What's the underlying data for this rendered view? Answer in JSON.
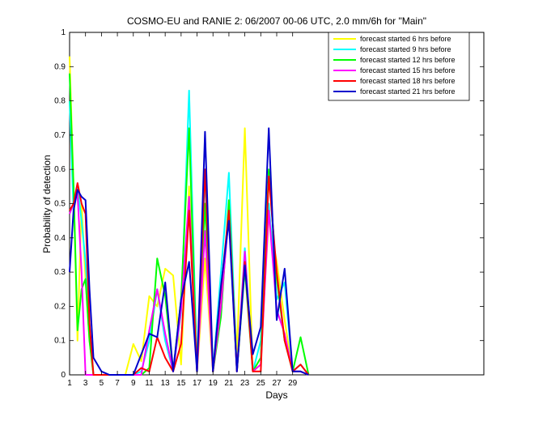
{
  "chart_data": {
    "type": "line",
    "title": "COSMO-EU and RANIE 2: 06/2007 00-06 UTC, 2.0 mm/6h for \"Main\"",
    "xlabel": "Days",
    "ylabel": "Probability of detection",
    "xlim": [
      1,
      53
    ],
    "ylim": [
      0,
      1
    ],
    "xticks": [
      1,
      3,
      5,
      7,
      9,
      11,
      13,
      15,
      17,
      19,
      21,
      23,
      25,
      27,
      29
    ],
    "yticks": [
      0,
      0.1,
      0.2,
      0.3,
      0.4,
      0.5,
      0.6,
      0.7,
      0.8,
      0.9,
      1
    ],
    "ytick_labels": [
      "0",
      "0.1",
      "0.2",
      "0.3",
      "0.4",
      "0.5",
      "0.6",
      "0.7",
      "0.8",
      "0.9",
      "1"
    ],
    "legend_position": "top-right",
    "x": [
      1,
      1.5,
      2,
      2.5,
      3,
      3.5,
      4,
      5,
      6,
      7,
      8,
      9,
      10,
      11,
      12,
      13,
      14,
      15,
      16,
      17,
      18,
      19,
      20,
      21,
      22,
      23,
      24,
      25,
      26,
      27,
      28,
      29,
      30,
      31
    ],
    "series": [
      {
        "name": "forecast started 6 hrs before",
        "color": "#ffff00",
        "values": [
          0.93,
          0.55,
          0.1,
          0.5,
          0.28,
          0.1,
          0,
          0,
          0,
          0,
          0,
          0.09,
          0.04,
          0.23,
          0.2,
          0.31,
          0.29,
          0.03,
          0.55,
          0.01,
          0.34,
          0.01,
          0.18,
          0.5,
          0.06,
          0.72,
          0.01,
          0.05,
          0.46,
          0.33,
          0.16,
          0.01,
          0.01,
          0
        ]
      },
      {
        "name": "forecast started 9 hrs before",
        "color": "#00ffff",
        "values": [
          0.8,
          0.48,
          0.55,
          0.45,
          0.33,
          0.15,
          0,
          0,
          0,
          0,
          0,
          0,
          0.01,
          0.1,
          0.25,
          0.1,
          0.01,
          0.18,
          0.83,
          0.01,
          0.58,
          0.01,
          0.3,
          0.59,
          0.01,
          0.37,
          0.01,
          0.1,
          0.5,
          0.22,
          0.27,
          0.01,
          0.03,
          0
        ]
      },
      {
        "name": "forecast started 12 hrs before",
        "color": "#00ff00",
        "values": [
          0.88,
          0.55,
          0.13,
          0.25,
          0.28,
          0.1,
          0,
          0,
          0,
          0,
          0,
          0,
          0,
          0.02,
          0.34,
          0.23,
          0.01,
          0.22,
          0.72,
          0.01,
          0.5,
          0.01,
          0.17,
          0.51,
          0.01,
          0.31,
          0.01,
          0.05,
          0.6,
          0.28,
          0.1,
          0.01,
          0.11,
          0
        ]
      },
      {
        "name": "forecast started 15 hrs before",
        "color": "#ff00ff",
        "values": [
          0.47,
          0.5,
          0.53,
          0.3,
          0,
          0,
          0,
          0,
          0,
          0,
          0,
          0,
          0,
          0.13,
          0.25,
          0.12,
          0.01,
          0.19,
          0.52,
          0.01,
          0.42,
          0.01,
          0.2,
          0.47,
          0.01,
          0.36,
          0.01,
          0.03,
          0.48,
          0.19,
          0.12,
          0.01,
          0.01,
          0
        ]
      },
      {
        "name": "forecast started 18 hrs before",
        "color": "#ff0000",
        "values": [
          0.48,
          0.5,
          0.56,
          0.5,
          0.47,
          0.15,
          0,
          0,
          0,
          0,
          0,
          0,
          0.02,
          0.01,
          0.11,
          0.05,
          0.01,
          0.09,
          0.48,
          0.01,
          0.6,
          0.01,
          0.25,
          0.48,
          0.01,
          0.33,
          0.01,
          0.01,
          0.58,
          0.3,
          0.1,
          0.01,
          0.03,
          0
        ]
      },
      {
        "name": "forecast started 21 hrs before",
        "color": "#0000cc",
        "values": [
          0.3,
          0.48,
          0.54,
          0.52,
          0.51,
          0.25,
          0.05,
          0.01,
          0,
          0,
          0,
          0,
          0.06,
          0.12,
          0.11,
          0.27,
          0.01,
          0.22,
          0.33,
          0.01,
          0.71,
          0.01,
          0.26,
          0.45,
          0.01,
          0.32,
          0.06,
          0.14,
          0.72,
          0.16,
          0.31,
          0.01,
          0.01,
          0
        ]
      }
    ]
  }
}
